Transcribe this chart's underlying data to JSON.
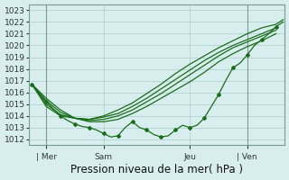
{
  "xlabel": "Pression niveau de la mer( hPa )",
  "bg_color": "#d8eeee",
  "line_color": "#1a6e1a",
  "grid_color": "#aacccc",
  "ylim": [
    1011.5,
    1023.5
  ],
  "yticks": [
    1012,
    1013,
    1014,
    1015,
    1016,
    1017,
    1018,
    1019,
    1020,
    1021,
    1022,
    1023
  ],
  "day_labels": [
    "| Mer",
    "Sam",
    "Jeu",
    "| Ven"
  ],
  "day_positions": [
    0.5,
    2.5,
    5.5,
    7.5
  ],
  "xlim": [
    -0.1,
    8.8
  ],
  "lines": [
    {
      "x": [
        0.0,
        0.25,
        0.5,
        0.75,
        1.0,
        1.25,
        1.5,
        1.75,
        2.0,
        2.25,
        2.5,
        2.75,
        3.0,
        3.25,
        3.5,
        3.75,
        4.0,
        4.25,
        4.5,
        4.75,
        5.0,
        5.25,
        5.5,
        5.75,
        6.0,
        6.25,
        6.5,
        6.75,
        7.0,
        7.25,
        7.5,
        7.75,
        8.0,
        8.25,
        8.5,
        8.75
      ],
      "y": [
        1016.7,
        1015.9,
        1015.2,
        1014.6,
        1014.0,
        1013.6,
        1013.3,
        1013.1,
        1013.0,
        1012.8,
        1012.5,
        1012.2,
        1012.3,
        1013.0,
        1013.5,
        1013.0,
        1012.8,
        1012.4,
        1012.2,
        1012.3,
        1012.8,
        1013.2,
        1013.0,
        1013.2,
        1013.8,
        1014.8,
        1015.8,
        1017.0,
        1018.1,
        1018.5,
        1019.2,
        1020.0,
        1020.5,
        1021.0,
        1021.6,
        1022.0
      ],
      "marker": true,
      "marker_every": 2
    },
    {
      "x": [
        0.0,
        0.5,
        1.0,
        1.5,
        2.0,
        2.5,
        3.0,
        3.5,
        4.0,
        4.5,
        5.0,
        5.5,
        6.0,
        6.5,
        7.0,
        7.5,
        8.0,
        8.5
      ],
      "y": [
        1016.7,
        1015.5,
        1014.5,
        1013.8,
        1013.5,
        1013.5,
        1013.7,
        1014.2,
        1014.8,
        1015.5,
        1016.2,
        1016.9,
        1017.7,
        1018.6,
        1019.3,
        1019.9,
        1020.4,
        1021.0
      ],
      "marker": false
    },
    {
      "x": [
        0.0,
        0.5,
        1.0,
        1.5,
        2.0,
        2.5,
        3.0,
        3.5,
        4.0,
        4.5,
        5.0,
        5.5,
        6.0,
        6.5,
        7.0,
        7.5,
        8.0,
        8.5
      ],
      "y": [
        1016.7,
        1015.3,
        1014.3,
        1013.8,
        1013.6,
        1013.7,
        1014.0,
        1014.5,
        1015.2,
        1015.9,
        1016.7,
        1017.5,
        1018.3,
        1019.1,
        1019.8,
        1020.3,
        1020.8,
        1021.3
      ],
      "marker": false
    },
    {
      "x": [
        0.0,
        0.5,
        1.0,
        1.5,
        2.0,
        2.5,
        3.0,
        3.5,
        4.0,
        4.5,
        5.0,
        5.5,
        6.0,
        6.5,
        7.0,
        7.5,
        8.0,
        8.5
      ],
      "y": [
        1016.7,
        1015.0,
        1014.1,
        1013.8,
        1013.7,
        1013.9,
        1014.2,
        1014.8,
        1015.5,
        1016.3,
        1017.1,
        1017.9,
        1018.7,
        1019.4,
        1020.0,
        1020.5,
        1021.0,
        1021.5
      ],
      "marker": false
    },
    {
      "x": [
        0.0,
        0.5,
        1.0,
        1.5,
        2.0,
        2.5,
        3.0,
        3.5,
        4.0,
        4.5,
        5.0,
        5.5,
        6.0,
        6.5,
        7.0,
        7.5,
        8.0,
        8.5,
        8.75
      ],
      "y": [
        1016.7,
        1014.8,
        1014.0,
        1013.8,
        1013.7,
        1014.0,
        1014.5,
        1015.1,
        1015.9,
        1016.7,
        1017.6,
        1018.4,
        1019.1,
        1019.8,
        1020.4,
        1021.0,
        1021.5,
        1021.8,
        1022.2
      ],
      "marker": false
    }
  ],
  "marker_style": "D",
  "marker_size": 2.0,
  "linewidth": 0.9,
  "fontsize_ticks": 6.5,
  "fontsize_xlabel": 8.5,
  "tick_label_color": "#333333"
}
